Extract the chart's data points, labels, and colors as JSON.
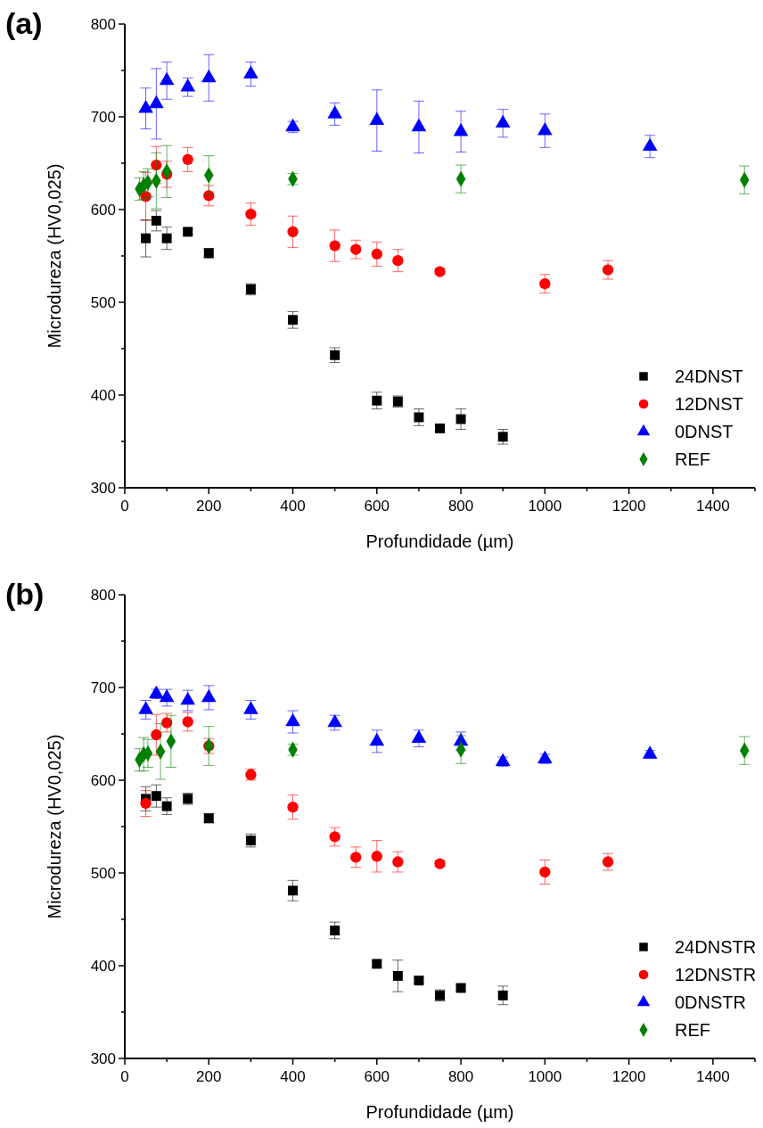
{
  "chart_data": [
    {
      "type": "scatter",
      "title": "(a)",
      "xlabel": "Profundidade (µm)",
      "ylabel": "Microdureza (HV0,025)",
      "xlim": [
        0,
        1500
      ],
      "ylim": [
        300,
        800
      ],
      "xticks": [
        0,
        {
          "value": 100,
          "label": null
        },
        200,
        {
          "value": 300,
          "label": null
        },
        400,
        {
          "value": 500,
          "label": null
        },
        600,
        {
          "value": 700,
          "label": null
        },
        800,
        {
          "value": 900,
          "label": null
        },
        1000,
        {
          "value": 1100,
          "label": null
        },
        1200,
        {
          "value": 1300,
          "label": null
        },
        1400,
        {
          "value": 1500,
          "label": null
        }
      ],
      "yticks": [
        300,
        {
          "value": 350,
          "label": null
        },
        400,
        {
          "value": 450,
          "label": null
        },
        500,
        {
          "value": 550,
          "label": null
        },
        600,
        {
          "value": 650,
          "label": null
        },
        700,
        {
          "value": 750,
          "label": null
        },
        800
      ],
      "grid": false,
      "legend": "bottom right",
      "series": [
        {
          "name": "24DNST",
          "color": "#000000",
          "marker": "square",
          "x": [
            50,
            75,
            100,
            150,
            200,
            300,
            400,
            500,
            600,
            650,
            700,
            750,
            800,
            900
          ],
          "values": [
            569,
            588,
            569,
            576,
            553,
            514,
            481,
            443,
            394,
            393,
            376,
            364,
            374,
            355
          ],
          "errors": [
            20,
            11,
            12,
            3,
            5,
            6,
            9,
            8,
            9,
            6,
            9,
            3,
            11,
            8
          ]
        },
        {
          "name": "12DNST",
          "color": "#ff0000",
          "marker": "circle",
          "x": [
            50,
            75,
            100,
            150,
            200,
            300,
            400,
            500,
            550,
            600,
            650,
            750,
            1000,
            1150
          ],
          "values": [
            614,
            648,
            638,
            654,
            615,
            595,
            576,
            561,
            557,
            552,
            545,
            533,
            520,
            535
          ],
          "errors": [
            26,
            20,
            14,
            13,
            11,
            12,
            17,
            17,
            10,
            13,
            12,
            3,
            10,
            10
          ]
        },
        {
          "name": "0DNST",
          "color": "#0000ff",
          "marker": "triangle",
          "x": [
            50,
            75,
            100,
            150,
            200,
            300,
            400,
            500,
            600,
            700,
            800,
            900,
            1000,
            1250
          ],
          "values": [
            709,
            714,
            739,
            732,
            742,
            746,
            689,
            703,
            696,
            689,
            684,
            693,
            685,
            668
          ],
          "errors": [
            22,
            38,
            20,
            10,
            25,
            13,
            6,
            12,
            33,
            28,
            22,
            15,
            18,
            12
          ]
        },
        {
          "name": "REF",
          "color": "#008000",
          "marker": "diamond",
          "x": [
            35,
            45,
            55,
            75,
            100,
            200,
            400,
            800,
            1475
          ],
          "values": [
            622,
            626,
            629,
            631,
            641,
            637,
            633,
            633,
            632
          ],
          "errors": [
            12,
            15,
            15,
            30,
            28,
            21,
            6,
            15,
            15
          ]
        }
      ]
    },
    {
      "type": "scatter",
      "title": "(b)",
      "xlabel": "Profundidade (µm)",
      "ylabel": "Microdureza (HV0,025)",
      "xlim": [
        0,
        1500
      ],
      "ylim": [
        300,
        800
      ],
      "xticks": [
        0,
        {
          "value": 100,
          "label": null
        },
        200,
        {
          "value": 300,
          "label": null
        },
        400,
        {
          "value": 500,
          "label": null
        },
        600,
        {
          "value": 700,
          "label": null
        },
        800,
        {
          "value": 900,
          "label": null
        },
        1000,
        {
          "value": 1100,
          "label": null
        },
        1200,
        {
          "value": 1300,
          "label": null
        },
        1400,
        {
          "value": 1500,
          "label": null
        }
      ],
      "yticks": [
        300,
        {
          "value": 350,
          "label": null
        },
        400,
        {
          "value": 450,
          "label": null
        },
        500,
        {
          "value": 550,
          "label": null
        },
        600,
        {
          "value": 650,
          "label": null
        },
        700,
        {
          "value": 750,
          "label": null
        },
        800
      ],
      "grid": false,
      "legend": "bottom right",
      "series": [
        {
          "name": "24DNSTR",
          "color": "#000000",
          "marker": "square",
          "x": [
            50,
            75,
            100,
            150,
            200,
            300,
            400,
            500,
            600,
            650,
            700,
            750,
            800,
            900
          ],
          "values": [
            580,
            583,
            572,
            580,
            559,
            535,
            481,
            438,
            402,
            389,
            384,
            368,
            376,
            368
          ],
          "errors": [
            13,
            12,
            9,
            6,
            5,
            7,
            11,
            9,
            3,
            17,
            3,
            6,
            3,
            10
          ]
        },
        {
          "name": "12DNSTR",
          "color": "#ff0000",
          "marker": "circle",
          "x": [
            50,
            75,
            100,
            150,
            200,
            300,
            400,
            500,
            550,
            600,
            650,
            750,
            1000,
            1150
          ],
          "values": [
            575,
            649,
            662,
            663,
            637,
            606,
            571,
            539,
            517,
            518,
            512,
            510,
            501,
            512
          ],
          "errors": [
            14,
            22,
            10,
            10,
            8,
            6,
            13,
            10,
            11,
            17,
            11,
            3,
            13,
            9
          ]
        },
        {
          "name": "0DNSTR",
          "color": "#0000ff",
          "marker": "triangle",
          "x": [
            50,
            75,
            100,
            150,
            200,
            300,
            400,
            500,
            600,
            700,
            800,
            900,
            1000,
            1250
          ],
          "values": [
            676,
            693,
            689,
            686,
            689,
            676,
            663,
            662,
            642,
            645,
            642,
            620,
            623,
            628
          ],
          "errors": [
            10,
            5,
            9,
            11,
            13,
            10,
            12,
            8,
            12,
            9,
            10,
            5,
            5,
            4
          ]
        },
        {
          "name": "REF",
          "color": "#008000",
          "marker": "diamond",
          "x": [
            35,
            45,
            55,
            85,
            110,
            200,
            400,
            800,
            1475
          ],
          "values": [
            622,
            628,
            629,
            631,
            642,
            637,
            633,
            633,
            632
          ],
          "errors": [
            12,
            18,
            15,
            30,
            28,
            21,
            6,
            15,
            15
          ]
        }
      ]
    }
  ]
}
